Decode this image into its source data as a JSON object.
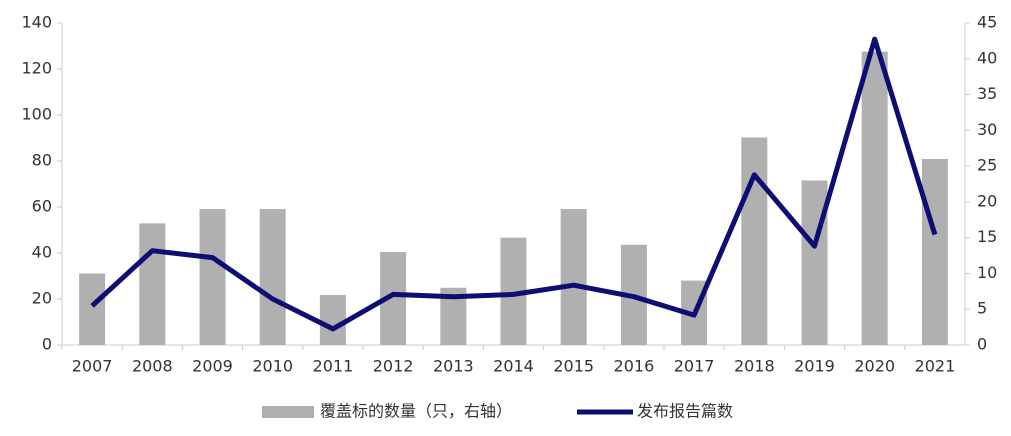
{
  "chart_data": {
    "type": "bar-line",
    "categories": [
      "2007",
      "2008",
      "2009",
      "2010",
      "2011",
      "2012",
      "2013",
      "2014",
      "2015",
      "2016",
      "2017",
      "2018",
      "2019",
      "2020",
      "2021"
    ],
    "series": [
      {
        "name": "覆盖标的数量（只，右轴）",
        "type": "bar",
        "axis": "y2",
        "color": "#b0b0b0",
        "values": [
          10,
          17,
          19,
          19,
          7,
          13,
          8,
          15,
          19,
          14,
          9,
          29,
          23,
          41,
          26
        ]
      },
      {
        "name": "发布报告篇数",
        "type": "line",
        "color": "#0d0d73",
        "values": [
          17,
          41,
          38,
          20,
          7,
          22,
          21,
          22,
          26,
          21,
          13,
          74,
          43,
          133,
          48
        ]
      }
    ],
    "ylim": [
      0,
      140
    ],
    "yticks": [
      0,
      20,
      40,
      60,
      80,
      100,
      120,
      140
    ],
    "y2lim": [
      0,
      45
    ],
    "y2ticks": [
      0,
      5,
      10,
      15,
      20,
      25,
      30,
      35,
      40,
      45
    ],
    "legend": "bottom"
  }
}
